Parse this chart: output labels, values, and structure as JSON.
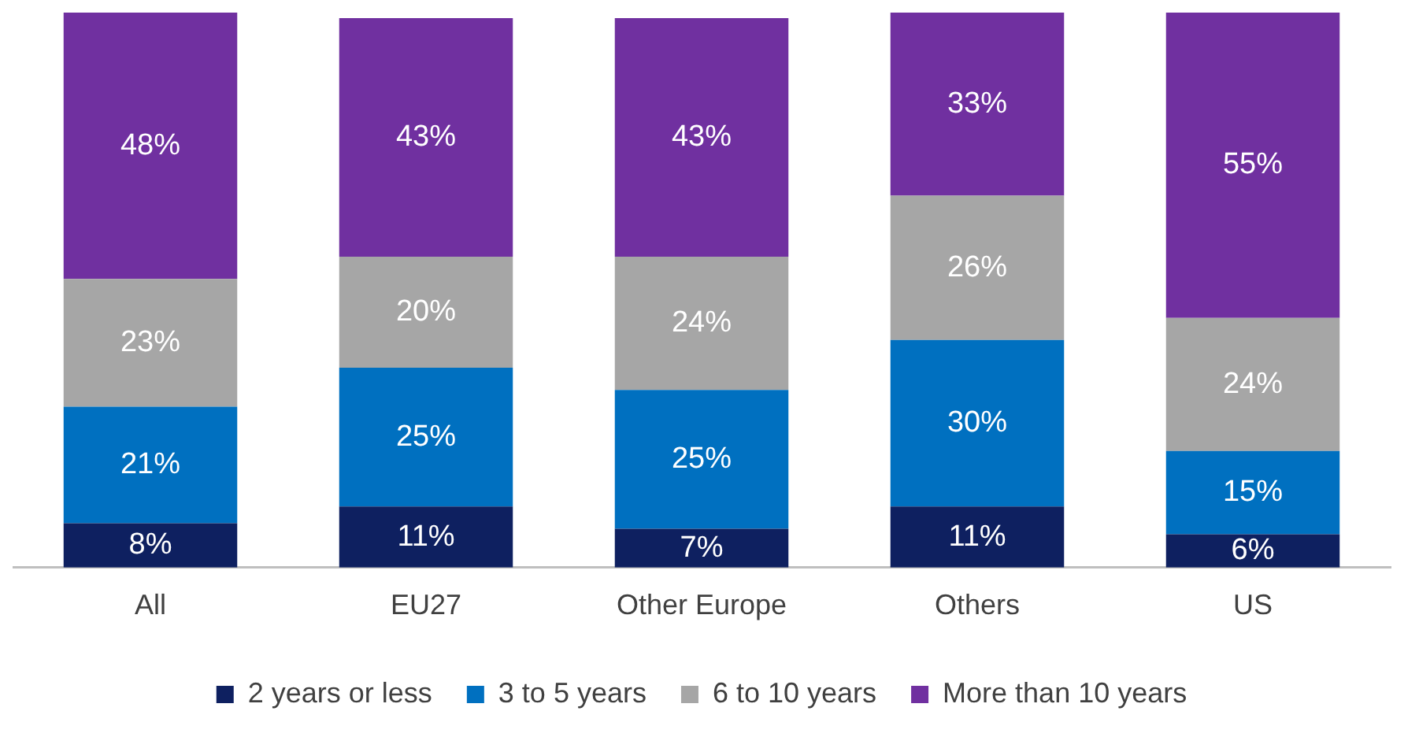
{
  "chart_data": {
    "type": "bar",
    "stacked": true,
    "categories": [
      "All",
      "EU27",
      "Other Europe",
      "Others",
      "US"
    ],
    "series": [
      {
        "name": "2 years or less",
        "color": "#0e2060",
        "values": [
          8,
          11,
          7,
          11,
          6
        ],
        "value_labels": [
          "8%",
          "11%",
          "7%",
          "11%",
          "6%"
        ]
      },
      {
        "name": "3 to 5 years",
        "color": "#0070c0",
        "values": [
          21,
          25,
          25,
          30,
          15
        ],
        "value_labels": [
          "21%",
          "25%",
          "25%",
          "30%",
          "15%"
        ]
      },
      {
        "name": "6 to 10 years",
        "color": "#a6a6a6",
        "values": [
          23,
          20,
          24,
          26,
          24
        ],
        "value_labels": [
          "23%",
          "20%",
          "24%",
          "26%",
          "24%"
        ]
      },
      {
        "name": "More than 10 years",
        "color": "#7030a0",
        "values": [
          48,
          43,
          43,
          33,
          55
        ],
        "value_labels": [
          "48%",
          "43%",
          "43%",
          "33%",
          "55%"
        ]
      }
    ],
    "tick_labels": "x",
    "legend": "bottom",
    "grid": false
  }
}
